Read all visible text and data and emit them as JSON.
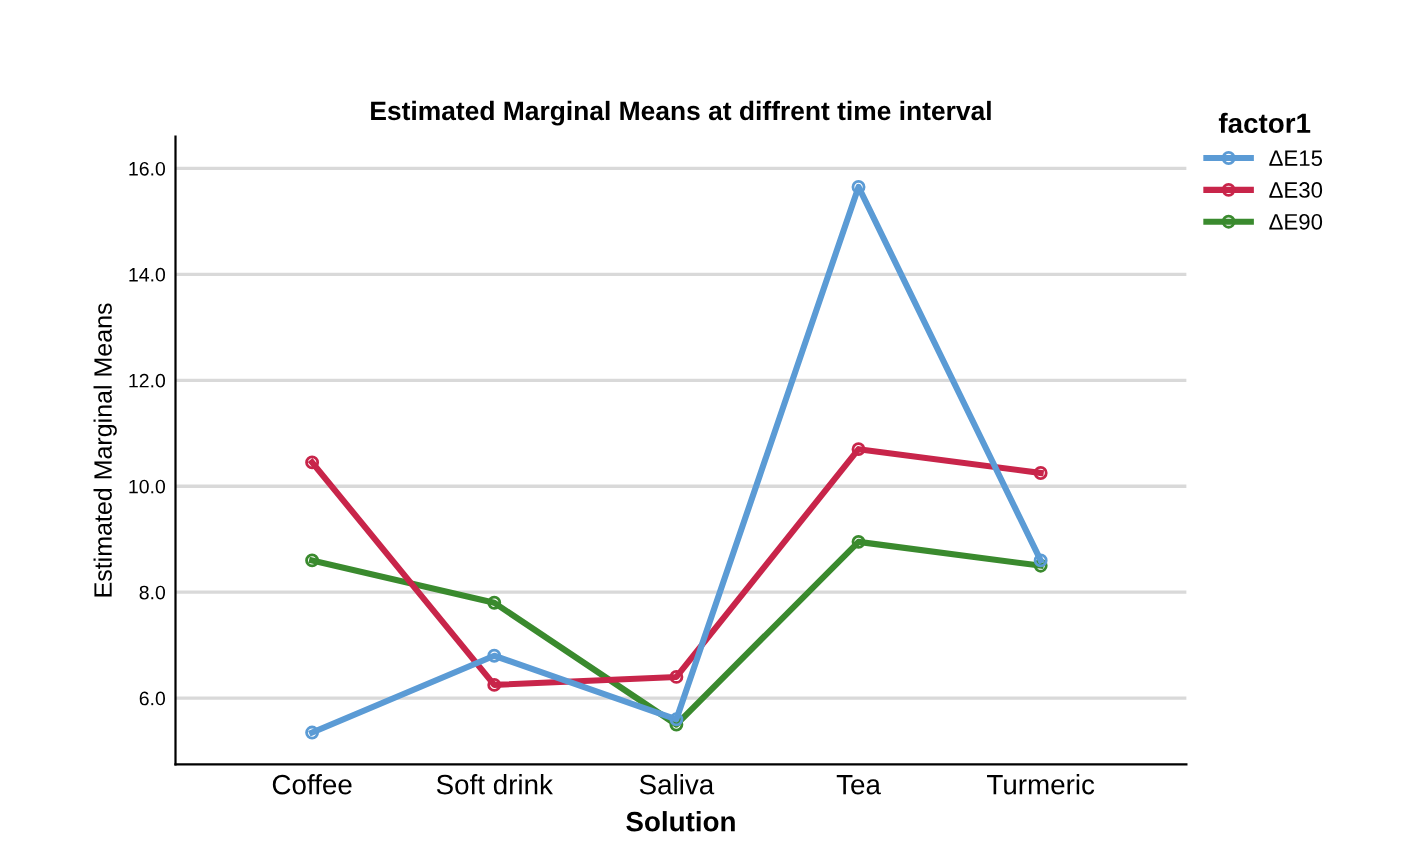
{
  "chart_data": {
    "type": "line",
    "title": "Estimated Marginal Means at diffrent time interval",
    "xlabel": "Solution",
    "ylabel": "Estimated Marginal Means",
    "legend_title": "factor1",
    "categories": [
      "Coffee",
      "Soft drink",
      "Saliva",
      "Tea",
      "Turmeric"
    ],
    "series": [
      {
        "name": "ΔE15",
        "color": "#5b9bd5",
        "values": [
          5.35,
          6.8,
          5.6,
          15.65,
          8.6
        ]
      },
      {
        "name": "ΔE30",
        "color": "#c8254a",
        "values": [
          10.45,
          6.25,
          6.4,
          10.7,
          10.25
        ]
      },
      {
        "name": "ΔE90",
        "color": "#3a8a2e",
        "values": [
          8.6,
          7.8,
          5.5,
          8.95,
          8.5
        ]
      }
    ],
    "ylim": [
      4.75,
      16.6
    ],
    "yticks": [
      {
        "value": 6,
        "label": "6.0"
      },
      {
        "value": 8,
        "label": "8.0"
      },
      {
        "value": 10,
        "label": "10.0"
      },
      {
        "value": 12,
        "label": "12.0"
      },
      {
        "value": 14,
        "label": "14.0"
      },
      {
        "value": 16,
        "label": "16.0"
      }
    ],
    "grid": "y",
    "legend": "top right",
    "marker": "circle",
    "line_style": "solid"
  }
}
